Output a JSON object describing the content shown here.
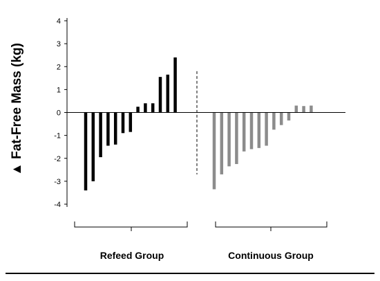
{
  "chart_data": {
    "type": "bar",
    "ylabel": "▲ Fat-Free Mass (kg)",
    "ylim": [
      -4,
      4
    ],
    "yticks": [
      "4",
      "3",
      "2",
      "1",
      "0",
      "-1",
      "-2",
      "-3",
      "-4"
    ],
    "grid": false,
    "groups": [
      {
        "name": "Refeed Group",
        "color": "#000000",
        "values": [
          -3.4,
          -3.0,
          -1.95,
          -1.45,
          -1.4,
          -0.9,
          -0.85,
          0.25,
          0.4,
          0.4,
          1.55,
          1.65,
          2.4
        ]
      },
      {
        "name": "Continuous Group",
        "color": "#8c8c8c",
        "values": [
          -3.35,
          -2.7,
          -2.35,
          -2.25,
          -1.7,
          -1.6,
          -1.55,
          -1.45,
          -0.75,
          -0.55,
          -0.35,
          0.3,
          0.28,
          0.3
        ]
      }
    ]
  }
}
